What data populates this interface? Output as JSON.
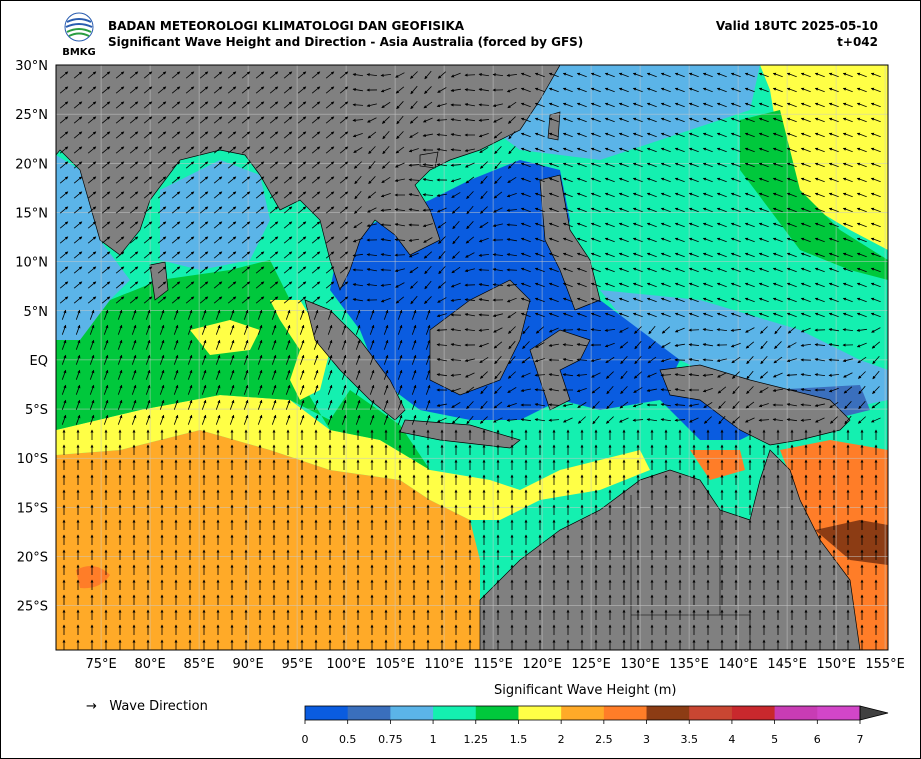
{
  "header": {
    "agency": "BADAN METEOROLOGI KLIMATOLOGI DAN GEOFISIKA",
    "product": "Significant Wave Height and Direction - Asia Australia (forced by GFS)",
    "valid": "Valid 18UTC 2025-05-10",
    "forecast_step": "t+042",
    "logo_text": "BMKG"
  },
  "axes": {
    "lat_labels": [
      "30°N",
      "25°N",
      "20°N",
      "15°N",
      "10°N",
      "5°N",
      "EQ",
      "5°S",
      "10°S",
      "15°S",
      "20°S",
      "25°S"
    ],
    "lon_labels": [
      "75°E",
      "80°E",
      "85°E",
      "90°E",
      "95°E",
      "100°E",
      "105°E",
      "110°E",
      "115°E",
      "120°E",
      "125°E",
      "130°E",
      "135°E",
      "140°E",
      "145°E",
      "150°E",
      "155°E"
    ]
  },
  "legend": {
    "arrow_label": "Wave Direction",
    "arrow_glyph": "→"
  },
  "colorbar": {
    "title": "Significant Wave Height (m)",
    "ticks": [
      "0",
      "0.5",
      "0.75",
      "1",
      "1.25",
      "1.5",
      "2",
      "2.5",
      "3",
      "3.5",
      "4",
      "5",
      "6",
      "7"
    ],
    "colors": [
      "#0a5ce0",
      "#3a6fbd",
      "#5bb4e8",
      "#14f0b0",
      "#00c83c",
      "#ffff46",
      "#ffaa28",
      "#ff7d28",
      "#8c3c14",
      "#c84632",
      "#c8282d",
      "#c83cb4",
      "#d246c8"
    ]
  },
  "map_colors": {
    "land": "#808080",
    "very_low": "#0a5ce0",
    "low": "#3a6fbd",
    "light_blue": "#5bb4e8",
    "teal": "#14f0b0",
    "green": "#00c83c",
    "yellow": "#ffff46",
    "orange": "#ffaa28",
    "dark_orange": "#ff7d28",
    "brown": "#8c3c14"
  }
}
